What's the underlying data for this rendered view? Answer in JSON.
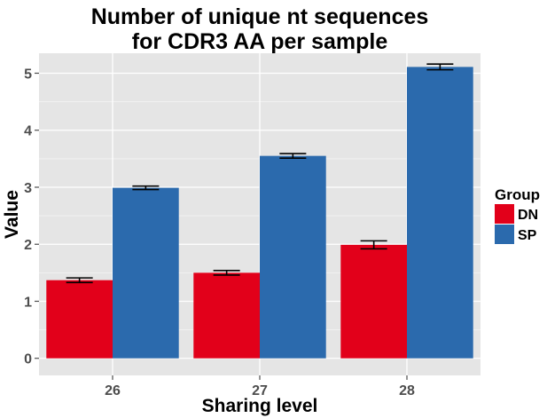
{
  "chart_data": {
    "type": "bar",
    "title": "Number of unique nt sequences\nfor CDR3 AA per sample",
    "xlabel": "Sharing level",
    "ylabel": "Value",
    "categories": [
      "26",
      "27",
      "28"
    ],
    "ylim": [
      -0.3,
      5.35
    ],
    "yticks": [
      "0",
      "1",
      "2",
      "3",
      "4",
      "5"
    ],
    "grid": true,
    "legend": {
      "title": "Group",
      "position": "right"
    },
    "series": [
      {
        "name": "DN",
        "color": "#e2001a",
        "values": [
          1.37,
          1.5,
          1.99
        ],
        "errors": [
          0.04,
          0.04,
          0.07
        ]
      },
      {
        "name": "SP",
        "color": "#2b6aad",
        "values": [
          2.99,
          3.55,
          5.11
        ],
        "errors": [
          0.03,
          0.04,
          0.05
        ]
      }
    ]
  }
}
